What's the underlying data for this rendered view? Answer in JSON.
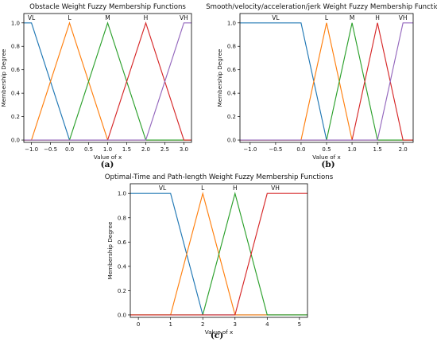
{
  "chart_data": [
    {
      "type": "line",
      "caption": "(a)",
      "title": "Obstacle Weight Fuzzy Membership Functions",
      "xlabel": "Value of x",
      "ylabel": "Membership Degree",
      "xlim": [
        -1.2,
        3.2
      ],
      "ylim": [
        -0.02,
        1.08
      ],
      "xticks": [
        -1.0,
        -0.5,
        0.0,
        0.5,
        1.0,
        1.5,
        2.0,
        2.5,
        3.0
      ],
      "xtick_labels": [
        "−1.0",
        "−0.5",
        "0.0",
        "0.5",
        "1.0",
        "1.5",
        "2.0",
        "2.5",
        "3.0"
      ],
      "yticks": [
        0.0,
        0.2,
        0.4,
        0.6,
        0.8,
        1.0
      ],
      "ytick_labels": [
        "0.0",
        "0.2",
        "0.4",
        "0.6",
        "0.8",
        "1.0"
      ],
      "series": [
        {
          "name": "VL",
          "color": "#1f77b4",
          "label_x": -1.0,
          "x": [
            -1.2,
            -1.0,
            0.0,
            3.2
          ],
          "y": [
            1,
            1,
            0,
            0
          ]
        },
        {
          "name": "L",
          "color": "#ff7f0e",
          "label_x": 0.0,
          "x": [
            -1.2,
            -1.0,
            0.0,
            1.0,
            3.2
          ],
          "y": [
            0,
            0,
            1,
            0,
            0
          ]
        },
        {
          "name": "M",
          "color": "#2ca02c",
          "label_x": 1.0,
          "x": [
            -1.2,
            0.0,
            1.0,
            2.0,
            3.2
          ],
          "y": [
            0,
            0,
            1,
            0,
            0
          ]
        },
        {
          "name": "H",
          "color": "#d62728",
          "label_x": 2.0,
          "x": [
            -1.2,
            1.0,
            2.0,
            3.0,
            3.2
          ],
          "y": [
            0,
            0,
            1,
            0,
            0
          ]
        },
        {
          "name": "VH",
          "color": "#9467bd",
          "label_x": 3.0,
          "x": [
            -1.2,
            2.0,
            3.0,
            3.2
          ],
          "y": [
            0,
            0,
            1,
            1
          ]
        }
      ]
    },
    {
      "type": "line",
      "caption": "(b)",
      "title": "Smooth/velocity/acceleration/jerk Weight Fuzzy Membership Functions",
      "xlabel": "Value of x",
      "ylabel": "Membership Degree",
      "xlim": [
        -1.2,
        2.2
      ],
      "ylim": [
        -0.02,
        1.08
      ],
      "xticks": [
        -1.0,
        -0.5,
        0.0,
        0.5,
        1.0,
        1.5,
        2.0
      ],
      "xtick_labels": [
        "−1.0",
        "−0.5",
        "0.0",
        "0.5",
        "1.0",
        "1.5",
        "2.0"
      ],
      "yticks": [
        0.0,
        0.2,
        0.4,
        0.6,
        0.8,
        1.0
      ],
      "ytick_labels": [
        "0.0",
        "0.2",
        "0.4",
        "0.6",
        "0.8",
        "1.0"
      ],
      "series": [
        {
          "name": "VL",
          "color": "#1f77b4",
          "label_x": -0.5,
          "x": [
            -1.2,
            0.0,
            0.5,
            2.2
          ],
          "y": [
            1,
            1,
            0,
            0
          ]
        },
        {
          "name": "L",
          "color": "#ff7f0e",
          "label_x": 0.5,
          "x": [
            -1.2,
            0.0,
            0.5,
            1.0,
            2.2
          ],
          "y": [
            0,
            0,
            1,
            0,
            0
          ]
        },
        {
          "name": "M",
          "color": "#2ca02c",
          "label_x": 1.0,
          "x": [
            -1.2,
            0.5,
            1.0,
            1.5,
            2.2
          ],
          "y": [
            0,
            0,
            1,
            0,
            0
          ]
        },
        {
          "name": "H",
          "color": "#d62728",
          "label_x": 1.5,
          "x": [
            -1.2,
            1.0,
            1.5,
            2.0,
            2.2
          ],
          "y": [
            0,
            0,
            1,
            0,
            0
          ]
        },
        {
          "name": "VH",
          "color": "#9467bd",
          "label_x": 2.0,
          "x": [
            -1.2,
            1.5,
            2.0,
            2.2
          ],
          "y": [
            0,
            0,
            1,
            1
          ]
        }
      ]
    },
    {
      "type": "line",
      "caption": "(c)",
      "title": "Optimal-Time and Path-length Weight Fuzzy Membership Functions",
      "xlabel": "Value of x",
      "ylabel": "Membership Degree",
      "xlim": [
        -0.25,
        5.25
      ],
      "ylim": [
        -0.02,
        1.08
      ],
      "xticks": [
        0,
        1,
        2,
        3,
        4,
        5
      ],
      "xtick_labels": [
        "0",
        "1",
        "2",
        "3",
        "4",
        "5"
      ],
      "yticks": [
        0.0,
        0.2,
        0.4,
        0.6,
        0.8,
        1.0
      ],
      "ytick_labels": [
        "0.0",
        "0.2",
        "0.4",
        "0.6",
        "0.8",
        "1.0"
      ],
      "series": [
        {
          "name": "VL",
          "color": "#1f77b4",
          "label_x": 0.75,
          "x": [
            -0.25,
            1.0,
            2.0,
            5.25
          ],
          "y": [
            1,
            1,
            0,
            0
          ]
        },
        {
          "name": "L",
          "color": "#ff7f0e",
          "label_x": 2.0,
          "x": [
            -0.25,
            1.0,
            2.0,
            3.0,
            5.25
          ],
          "y": [
            0,
            0,
            1,
            0,
            0
          ]
        },
        {
          "name": "H",
          "color": "#2ca02c",
          "label_x": 3.0,
          "x": [
            -0.25,
            2.0,
            3.0,
            4.0,
            5.25
          ],
          "y": [
            0,
            0,
            1,
            0,
            0
          ]
        },
        {
          "name": "VH",
          "color": "#d62728",
          "label_x": 4.25,
          "x": [
            -0.25,
            3.0,
            4.0,
            5.25
          ],
          "y": [
            0,
            0,
            1,
            1
          ]
        }
      ]
    }
  ]
}
